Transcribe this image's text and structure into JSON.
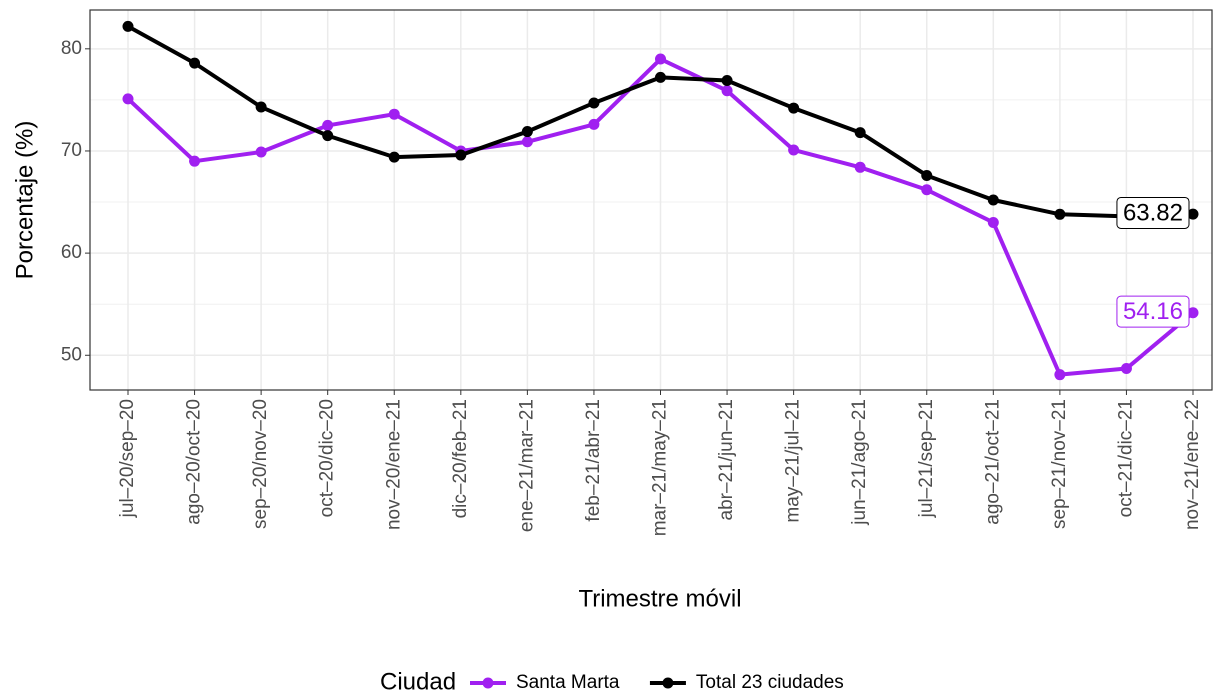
{
  "chart_data": {
    "type": "line",
    "x_label": "Trimestre móvil",
    "y_label": "Porcentaje (%)",
    "categories": [
      "jul–20/sep–20",
      "ago–20/oct–20",
      "sep–20/nov–20",
      "oct–20/dic–20",
      "nov–20/ene–21",
      "dic–20/feb–21",
      "ene–21/mar–21",
      "feb–21/abr–21",
      "mar–21/may–21",
      "abr–21/jun–21",
      "may–21/jul–21",
      "jun–21/ago–21",
      "jul–21/sep–21",
      "ago–21/oct–21",
      "sep–21/nov–21",
      "oct–21/dic–21",
      "nov–21/ene–22"
    ],
    "legend_title": "Ciudad",
    "legend": "bottom",
    "grid": true,
    "series": [
      {
        "name": "Santa Marta",
        "color": "#a020f0",
        "values": [
          75.1,
          69.0,
          69.9,
          72.5,
          73.6,
          70.0,
          70.9,
          72.6,
          79.0,
          75.9,
          70.1,
          68.4,
          66.2,
          63.0,
          48.1,
          48.7,
          54.16
        ]
      },
      {
        "name": "Total 23 ciudades",
        "color": "#000000",
        "values": [
          82.2,
          78.6,
          74.3,
          71.5,
          69.4,
          69.6,
          71.9,
          74.7,
          77.2,
          76.9,
          74.2,
          71.8,
          67.6,
          65.2,
          63.8,
          63.6,
          63.82
        ]
      }
    ],
    "ylim": [
      46.6,
      83.8
    ],
    "yticks": [
      50,
      60,
      70,
      80
    ],
    "minor_yticks": [
      55,
      65,
      75
    ]
  }
}
